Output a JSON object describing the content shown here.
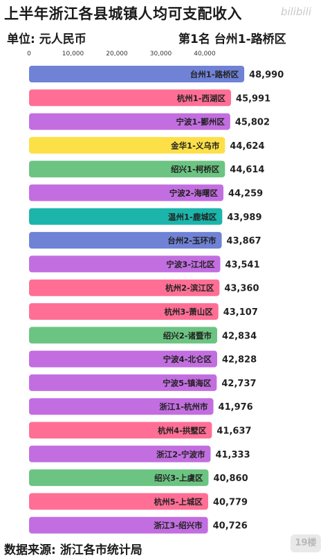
{
  "title": "上半年浙江各县城镇人均可支配收入",
  "unit_label": "单位: 元人民币",
  "rank_note": "第1名 台州1-路桥区",
  "source": "数据来源: 浙江各市统计局",
  "watermark": "bilibili",
  "corner_logo": "19楼",
  "colors": {
    "台州": "#6f82d6",
    "杭州": "#ff6f95",
    "宁波": "#c26ee0",
    "金华": "#fde047",
    "绍兴": "#6cc482",
    "温州": "#1bb5ab",
    "浙江": "#c26ee0"
  },
  "chart_data": {
    "type": "bar",
    "orientation": "horizontal",
    "xlim": [
      0,
      50000
    ],
    "xticks": [
      0,
      10000,
      20000,
      30000,
      40000
    ],
    "xtick_labels": [
      "0",
      "10,000",
      "20,000",
      "30,000",
      "40,000"
    ],
    "categories": [
      "台州1-路桥区",
      "杭州1-西湖区",
      "宁波1-鄞州区",
      "金华1-义乌市",
      "绍兴1-柯桥区",
      "宁波2-海曙区",
      "温州1-鹿城区",
      "台州2-玉环市",
      "宁波3-江北区",
      "杭州2-滨江区",
      "杭州3-萧山区",
      "绍兴2-诸暨市",
      "宁波4-北仑区",
      "宁波5-镇海区",
      "浙江1-杭州市",
      "杭州4-拱墅区",
      "浙江2-宁波市",
      "绍兴3-上虞区",
      "杭州5-上城区",
      "浙江3-绍兴市"
    ],
    "values": [
      48990,
      45991,
      45802,
      44624,
      44614,
      44259,
      43989,
      43867,
      43541,
      43360,
      43107,
      42834,
      42828,
      42737,
      41976,
      41637,
      41333,
      40860,
      40779,
      40726
    ],
    "value_labels": [
      "48,990",
      "45,991",
      "45,802",
      "44,624",
      "44,614",
      "44,259",
      "43,989",
      "43,867",
      "43,541",
      "43,360",
      "43,107",
      "42,834",
      "42,828",
      "42,737",
      "41,976",
      "41,637",
      "41,333",
      "40,860",
      "40,779",
      "40,726"
    ],
    "bar_groups": [
      "台州",
      "杭州",
      "宁波",
      "金华",
      "绍兴",
      "宁波",
      "温州",
      "台州",
      "宁波",
      "杭州",
      "杭州",
      "绍兴",
      "宁波",
      "宁波",
      "浙江",
      "杭州",
      "浙江",
      "绍兴",
      "杭州",
      "浙江"
    ]
  }
}
